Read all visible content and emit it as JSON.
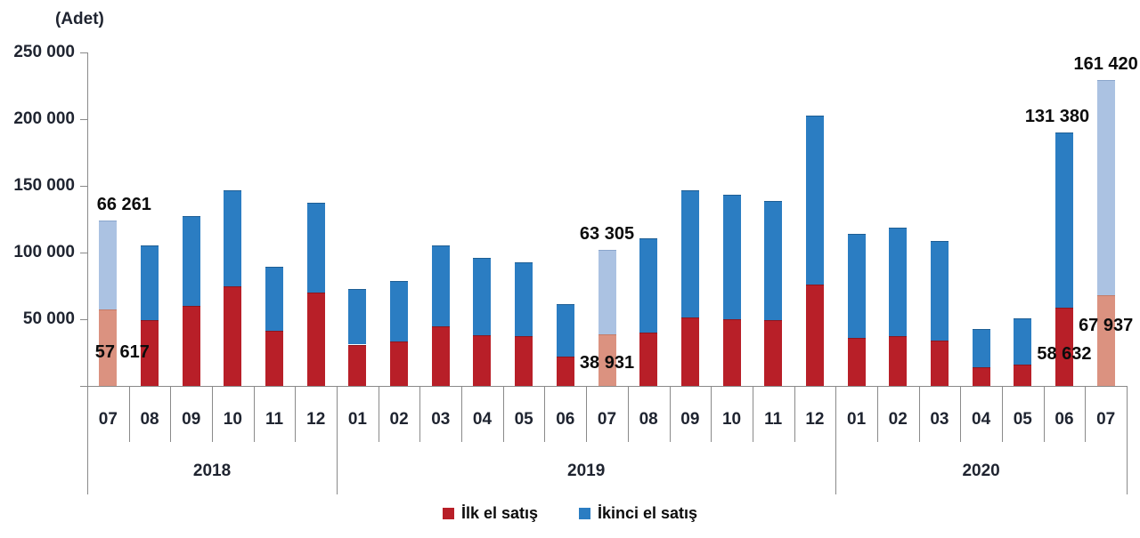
{
  "chart_data": {
    "type": "bar",
    "stacked": true,
    "title": "(Adet)",
    "ylabel": "(Adet)",
    "ylim": [
      0,
      250000
    ],
    "ytick_step": 50000,
    "ytick_labels": [
      "50 000",
      "100 000",
      "150 000",
      "200 000",
      "250 000"
    ],
    "grid": false,
    "legend_position": "bottom",
    "series_names": [
      "İlk el satış",
      "İkinci el satış"
    ],
    "legend": [
      {
        "label": "İlk el satış",
        "color_key": "first_hand"
      },
      {
        "label": "İkinci el satış",
        "color_key": "second_hand"
      }
    ],
    "colors": {
      "first_hand": "#b81f28",
      "second_hand": "#2b7dc2",
      "first_hand_highlight": "#db9280",
      "second_hand_highlight": "#abc2e2",
      "first_hand_edge": "#8e161d",
      "second_hand_edge": "#1d5e94",
      "first_hand_highlight_edge": "#c47a66",
      "second_hand_highlight_edge": "#8aa6cc",
      "axis": "#8a8a8a",
      "text": "#1f2430",
      "annotation_text": "#0c0c0c"
    },
    "groups": [
      {
        "year": "2018",
        "months": [
          {
            "month": "07",
            "first_hand": 57617,
            "second_hand": 66261,
            "highlight": true,
            "labels": {
              "first": "57 617",
              "second": "66 261"
            }
          },
          {
            "month": "08",
            "first_hand": 49300,
            "second_hand": 55850
          },
          {
            "month": "09",
            "first_hand": 60200,
            "second_hand": 67150
          },
          {
            "month": "10",
            "first_hand": 74900,
            "second_hand": 71650
          },
          {
            "month": "11",
            "first_hand": 41300,
            "second_hand": 48300
          },
          {
            "month": "12",
            "first_hand": 70200,
            "second_hand": 67200
          }
        ]
      },
      {
        "year": "2019",
        "months": [
          {
            "month": "01",
            "first_hand": 31000,
            "second_hand": 41900
          },
          {
            "month": "02",
            "first_hand": 33100,
            "second_hand": 45350
          },
          {
            "month": "03",
            "first_hand": 44700,
            "second_hand": 60350
          },
          {
            "month": "04",
            "first_hand": 38000,
            "second_hand": 57800
          },
          {
            "month": "05",
            "first_hand": 37300,
            "second_hand": 55600
          },
          {
            "month": "06",
            "first_hand": 21800,
            "second_hand": 39500
          },
          {
            "month": "07",
            "first_hand": 38931,
            "second_hand": 63305,
            "highlight": true,
            "labels": {
              "first": "38 931",
              "second": "63 305"
            }
          },
          {
            "month": "08",
            "first_hand": 40200,
            "second_hand": 70350
          },
          {
            "month": "09",
            "first_hand": 51300,
            "second_hand": 95700
          },
          {
            "month": "10",
            "first_hand": 50200,
            "second_hand": 92900
          },
          {
            "month": "11",
            "first_hand": 49100,
            "second_hand": 89900
          },
          {
            "month": "12",
            "first_hand": 76200,
            "second_hand": 126800
          }
        ]
      },
      {
        "year": "2020",
        "months": [
          {
            "month": "01",
            "first_hand": 35800,
            "second_hand": 78200
          },
          {
            "month": "02",
            "first_hand": 37500,
            "second_hand": 81500
          },
          {
            "month": "03",
            "first_hand": 34000,
            "second_hand": 75000
          },
          {
            "month": "04",
            "first_hand": 14000,
            "second_hand": 28500
          },
          {
            "month": "05",
            "first_hand": 16200,
            "second_hand": 34300
          },
          {
            "month": "06",
            "first_hand": 58632,
            "second_hand": 131380,
            "labels": {
              "first": "58 632",
              "second": "131 380"
            }
          },
          {
            "month": "07",
            "first_hand": 67937,
            "second_hand": 161420,
            "highlight": true,
            "labels": {
              "first": "67 937",
              "second": "161 420"
            }
          }
        ]
      }
    ]
  }
}
